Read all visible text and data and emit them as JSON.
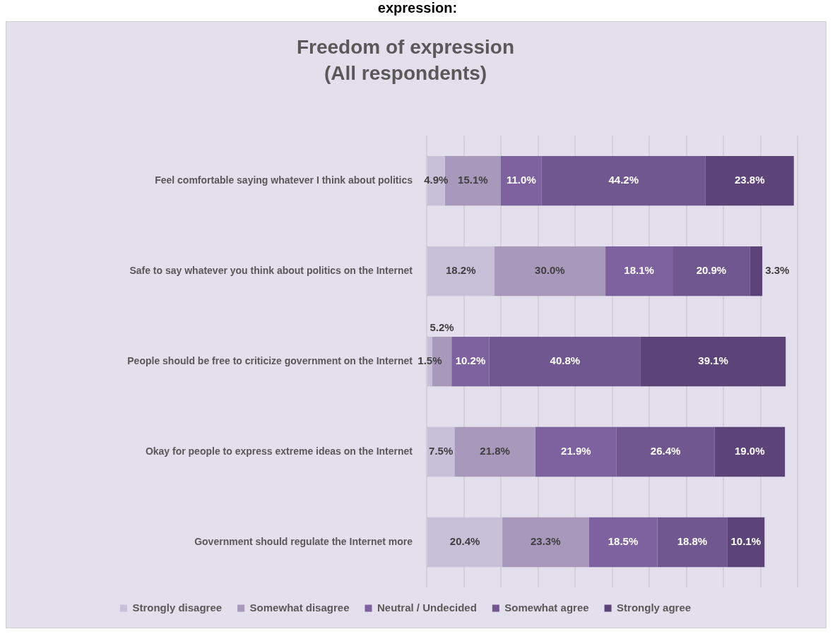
{
  "chart_data": {
    "type": "bar",
    "orientation": "horizontal",
    "stacked": true,
    "title": "Freedom of expression",
    "subtitle": "(All respondents)",
    "annotations": [
      "expression:"
    ],
    "categories": [
      "Feel comfortable saying whatever I think about politics",
      "Safe to say whatever you think about politics on the Internet",
      "People should be free to criticize government on the Internet",
      "Okay for people to express extreme ideas on the Internet",
      "Government should regulate the Internet more"
    ],
    "series": [
      {
        "name": "Strongly disagree",
        "color": "#c8c0d8",
        "values": [
          4.9,
          18.2,
          1.5,
          7.5,
          20.4
        ],
        "value_labels": [
          "4.9%",
          "18.2%",
          "1.5%",
          "7.5%",
          "20.4%"
        ]
      },
      {
        "name": "Somewhat disagree",
        "color": "#a898bc",
        "values": [
          15.1,
          30.0,
          5.2,
          21.8,
          23.3
        ],
        "value_labels": [
          "15.1%",
          "30.0%",
          "5.2%",
          "21.8%",
          "23.3%"
        ]
      },
      {
        "name": "Neutral / Undecided",
        "color": "#7e62a0",
        "values": [
          11.0,
          18.1,
          10.2,
          21.9,
          18.5
        ],
        "value_labels": [
          "11.0%",
          "18.1%",
          "10.2%",
          "21.9%",
          "18.5%"
        ]
      },
      {
        "name": "Somewhat agree",
        "color": "#715790",
        "values": [
          44.2,
          20.9,
          40.8,
          26.4,
          18.8
        ],
        "value_labels": [
          "44.2%",
          "20.9%",
          "40.8%",
          "26.4%",
          "18.8%"
        ]
      },
      {
        "name": "Strongly agree",
        "color": "#5c4478",
        "values": [
          23.8,
          3.3,
          39.1,
          19.0,
          10.1
        ],
        "value_labels": [
          "23.8%",
          "3.3%",
          "39.1%",
          "19.0%",
          "10.1%"
        ]
      }
    ],
    "xlim": [
      0,
      100
    ],
    "xticks": [
      {
        "value": 0,
        "label": null
      },
      {
        "value": 10,
        "label": null
      },
      {
        "value": 20,
        "label": null
      },
      {
        "value": 30,
        "label": null
      },
      {
        "value": 40,
        "label": null
      },
      {
        "value": 50,
        "label": null
      },
      {
        "value": 60,
        "label": null
      },
      {
        "value": 70,
        "label": null
      },
      {
        "value": 80,
        "label": null
      },
      {
        "value": 90,
        "label": null
      },
      {
        "value": 100,
        "label": null
      }
    ],
    "tick_labels": "y",
    "grid": "x",
    "legend": "bottom"
  }
}
